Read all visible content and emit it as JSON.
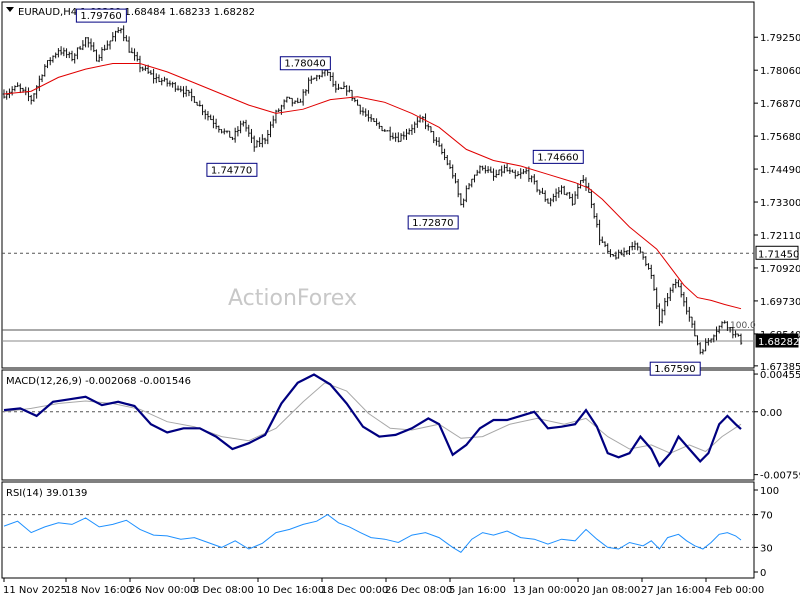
{
  "header": {
    "symbol": "EURAUD,H4",
    "ohlc": "1.68289 1.68484 1.68233 1.68282"
  },
  "watermark": "ActionForex",
  "colors": {
    "price_bars": "#111111",
    "moving_average": "#e00000",
    "macd_line": "#000080",
    "macd_signal": "#a8a8a8",
    "rsi_line": "#1e90ff",
    "grid_dash": "#555555",
    "label_border": "#000080"
  },
  "chart_data": [
    {
      "type": "ohlc",
      "panel": "price",
      "title": "EURAUD,H4",
      "ylim": [
        1.6738,
        1.8045
      ],
      "y_ticks": [
        "1.79250",
        "1.78060",
        "1.76870",
        "1.75680",
        "1.74490",
        "1.73300",
        "1.72110",
        "1.70920",
        "1.69730",
        "1.68540",
        "1.67385"
      ],
      "x_ticks": [
        "11 Nov 2025",
        "18 Nov 16:00",
        "26 Nov 00:00",
        "3 Dec 08:00",
        "10 Dec 16:00",
        "18 Dec 00:00",
        "26 Dec 08:00",
        "5 Jan 16:00",
        "13 Jan 00:00",
        "20 Jan 08:00",
        "27 Jan 16:00",
        "4 Feb 00:00"
      ],
      "close_path": [
        [
          0,
          1.772
        ],
        [
          5,
          1.7745
        ],
        [
          10,
          1.77
        ],
        [
          15,
          1.782
        ],
        [
          20,
          1.788
        ],
        [
          25,
          1.785
        ],
        [
          30,
          1.792
        ],
        [
          34,
          1.785
        ],
        [
          38,
          1.79
        ],
        [
          43,
          1.796
        ],
        [
          46,
          1.788
        ],
        [
          50,
          1.782
        ],
        [
          55,
          1.778
        ],
        [
          60,
          1.776
        ],
        [
          65,
          1.774
        ],
        [
          70,
          1.77
        ],
        [
          75,
          1.764
        ],
        [
          80,
          1.759
        ],
        [
          84,
          1.756
        ],
        [
          88,
          1.762
        ],
        [
          92,
          1.753
        ],
        [
          96,
          1.756
        ],
        [
          100,
          1.765
        ],
        [
          104,
          1.77
        ],
        [
          108,
          1.768
        ],
        [
          112,
          1.776
        ],
        [
          116,
          1.779
        ],
        [
          119,
          1.78
        ],
        [
          122,
          1.773
        ],
        [
          126,
          1.774
        ],
        [
          130,
          1.768
        ],
        [
          135,
          1.762
        ],
        [
          140,
          1.759
        ],
        [
          145,
          1.756
        ],
        [
          150,
          1.76
        ],
        [
          154,
          1.763
        ],
        [
          158,
          1.756
        ],
        [
          162,
          1.749
        ],
        [
          165,
          1.743
        ],
        [
          168,
          1.732
        ],
        [
          172,
          1.742
        ],
        [
          176,
          1.746
        ],
        [
          180,
          1.742
        ],
        [
          184,
          1.745
        ],
        [
          188,
          1.742
        ],
        [
          192,
          1.744
        ],
        [
          196,
          1.738
        ],
        [
          200,
          1.733
        ],
        [
          205,
          1.738
        ],
        [
          209,
          1.733
        ],
        [
          213,
          1.742
        ],
        [
          216,
          1.733
        ],
        [
          219,
          1.72
        ],
        [
          223,
          1.713
        ],
        [
          227,
          1.714
        ],
        [
          231,
          1.718
        ],
        [
          235,
          1.714
        ],
        [
          238,
          1.706
        ],
        [
          241,
          1.69
        ],
        [
          244,
          1.699
        ],
        [
          247,
          1.704
        ],
        [
          250,
          1.698
        ],
        [
          253,
          1.688
        ],
        [
          256,
          1.679
        ],
        [
          259,
          1.683
        ],
        [
          262,
          1.687
        ],
        [
          265,
          1.69
        ],
        [
          268,
          1.686
        ],
        [
          271,
          1.6828
        ]
      ],
      "moving_average": [
        [
          0,
          1.772
        ],
        [
          10,
          1.773
        ],
        [
          20,
          1.778
        ],
        [
          30,
          1.781
        ],
        [
          40,
          1.783
        ],
        [
          50,
          1.783
        ],
        [
          60,
          1.78
        ],
        [
          70,
          1.776
        ],
        [
          80,
          1.772
        ],
        [
          90,
          1.768
        ],
        [
          100,
          1.765
        ],
        [
          110,
          1.7665
        ],
        [
          120,
          1.77
        ],
        [
          130,
          1.771
        ],
        [
          140,
          1.769
        ],
        [
          150,
          1.765
        ],
        [
          160,
          1.76
        ],
        [
          170,
          1.752
        ],
        [
          180,
          1.748
        ],
        [
          190,
          1.746
        ],
        [
          200,
          1.743
        ],
        [
          210,
          1.74
        ],
        [
          215,
          1.738
        ],
        [
          220,
          1.734
        ],
        [
          230,
          1.724
        ],
        [
          240,
          1.716
        ],
        [
          250,
          1.703
        ],
        [
          255,
          1.6985
        ],
        [
          260,
          1.6975
        ],
        [
          265,
          1.696
        ],
        [
          271,
          1.6945
        ]
      ],
      "annotations": [
        {
          "label": "1.79760",
          "x": 45,
          "value": 1.7976
        },
        {
          "label": "1.78040",
          "x": 120,
          "value": 1.7804
        },
        {
          "label": "1.74770",
          "x": 93,
          "value": 1.7477
        },
        {
          "label": "1.72870",
          "x": 167,
          "value": 1.7287
        },
        {
          "label": "1.74660",
          "x": 213,
          "value": 1.7466
        },
        {
          "label": "1.67590",
          "x": 256,
          "value": 1.6759
        }
      ],
      "reference_lines": [
        {
          "label": "1.71450",
          "value": 1.7145,
          "style": "dashed"
        },
        {
          "label": "1.68282",
          "value": 1.68282,
          "style": "solid"
        },
        {
          "label": "100.0",
          "value": 1.6868,
          "style": "solid"
        }
      ]
    },
    {
      "type": "line",
      "panel": "macd",
      "title": "MACD(12,26,9) -0.002068 -0.001546",
      "ylim": [
        -0.008,
        0.0048
      ],
      "y_ticks": [
        "0.004553",
        "0.00",
        "-0.007593"
      ],
      "series": [
        {
          "role": "macd",
          "values": [
            [
              0,
              0.0002
            ],
            [
              6,
              0.0004
            ],
            [
              12,
              -0.0005
            ],
            [
              18,
              0.0012
            ],
            [
              24,
              0.0015
            ],
            [
              30,
              0.0018
            ],
            [
              36,
              0.0008
            ],
            [
              42,
              0.0012
            ],
            [
              48,
              0.0007
            ],
            [
              54,
              -0.0015
            ],
            [
              60,
              -0.0025
            ],
            [
              66,
              -0.002
            ],
            [
              72,
              -0.002
            ],
            [
              78,
              -0.003
            ],
            [
              84,
              -0.0045
            ],
            [
              90,
              -0.0038
            ],
            [
              96,
              -0.0028
            ],
            [
              102,
              0.001
            ],
            [
              108,
              0.0035
            ],
            [
              114,
              0.0045
            ],
            [
              120,
              0.0033
            ],
            [
              126,
              0.001
            ],
            [
              132,
              -0.0018
            ],
            [
              138,
              -0.003
            ],
            [
              144,
              -0.0028
            ],
            [
              150,
              -0.002
            ],
            [
              156,
              -0.0008
            ],
            [
              160,
              -0.0015
            ],
            [
              165,
              -0.0052
            ],
            [
              170,
              -0.004
            ],
            [
              175,
              -0.002
            ],
            [
              180,
              -0.001
            ],
            [
              185,
              -0.001
            ],
            [
              190,
              -0.0005
            ],
            [
              195,
              0.0
            ],
            [
              200,
              -0.002
            ],
            [
              205,
              -0.0018
            ],
            [
              210,
              -0.0015
            ],
            [
              214,
              0.0002
            ],
            [
              218,
              -0.0018
            ],
            [
              222,
              -0.005
            ],
            [
              226,
              -0.0055
            ],
            [
              230,
              -0.005
            ],
            [
              234,
              -0.003
            ],
            [
              238,
              -0.0045
            ],
            [
              241,
              -0.0065
            ],
            [
              245,
              -0.005
            ],
            [
              248,
              -0.003
            ],
            [
              252,
              -0.0045
            ],
            [
              256,
              -0.006
            ],
            [
              259,
              -0.005
            ],
            [
              263,
              -0.0015
            ],
            [
              266,
              -0.0005
            ],
            [
              269,
              -0.0015
            ],
            [
              271,
              -0.0021
            ]
          ]
        },
        {
          "role": "signal",
          "values": [
            [
              0,
              0.0
            ],
            [
              10,
              0.0004
            ],
            [
              20,
              0.001
            ],
            [
              30,
              0.0013
            ],
            [
              40,
              0.001
            ],
            [
              50,
              0.0003
            ],
            [
              60,
              -0.0012
            ],
            [
              70,
              -0.0018
            ],
            [
              80,
              -0.003
            ],
            [
              90,
              -0.0035
            ],
            [
              100,
              -0.002
            ],
            [
              110,
              0.0012
            ],
            [
              118,
              0.0035
            ],
            [
              126,
              0.0025
            ],
            [
              134,
              -0.0002
            ],
            [
              142,
              -0.002
            ],
            [
              150,
              -0.0022
            ],
            [
              160,
              -0.0015
            ],
            [
              168,
              -0.0032
            ],
            [
              176,
              -0.003
            ],
            [
              186,
              -0.0015
            ],
            [
              196,
              -0.0008
            ],
            [
              206,
              -0.0015
            ],
            [
              214,
              -0.0008
            ],
            [
              222,
              -0.003
            ],
            [
              230,
              -0.0045
            ],
            [
              238,
              -0.004
            ],
            [
              245,
              -0.005
            ],
            [
              252,
              -0.004
            ],
            [
              258,
              -0.0048
            ],
            [
              264,
              -0.003
            ],
            [
              271,
              -0.0015
            ]
          ]
        }
      ]
    },
    {
      "type": "line",
      "panel": "rsi",
      "title": "RSI(14) 39.0139",
      "ylim": [
        0,
        100
      ],
      "y_ticks": [
        "100",
        "70",
        "30",
        "0"
      ],
      "series": [
        {
          "role": "rsi",
          "values": [
            [
              0,
              56
            ],
            [
              5,
              62
            ],
            [
              10,
              48
            ],
            [
              15,
              55
            ],
            [
              20,
              60
            ],
            [
              25,
              58
            ],
            [
              30,
              66
            ],
            [
              35,
              55
            ],
            [
              40,
              58
            ],
            [
              45,
              63
            ],
            [
              50,
              52
            ],
            [
              55,
              45
            ],
            [
              60,
              44
            ],
            [
              65,
              40
            ],
            [
              70,
              42
            ],
            [
              75,
              36
            ],
            [
              80,
              30
            ],
            [
              85,
              38
            ],
            [
              90,
              28
            ],
            [
              95,
              35
            ],
            [
              100,
              48
            ],
            [
              105,
              52
            ],
            [
              110,
              58
            ],
            [
              115,
              62
            ],
            [
              119,
              70
            ],
            [
              123,
              60
            ],
            [
              127,
              55
            ],
            [
              131,
              48
            ],
            [
              135,
              42
            ],
            [
              140,
              40
            ],
            [
              145,
              36
            ],
            [
              150,
              45
            ],
            [
              155,
              48
            ],
            [
              160,
              42
            ],
            [
              165,
              30
            ],
            [
              168,
              24
            ],
            [
              172,
              40
            ],
            [
              176,
              48
            ],
            [
              180,
              45
            ],
            [
              185,
              50
            ],
            [
              190,
              42
            ],
            [
              195,
              40
            ],
            [
              200,
              34
            ],
            [
              205,
              40
            ],
            [
              210,
              38
            ],
            [
              214,
              52
            ],
            [
              218,
              40
            ],
            [
              222,
              30
            ],
            [
              226,
              28
            ],
            [
              230,
              36
            ],
            [
              235,
              32
            ],
            [
              238,
              38
            ],
            [
              241,
              28
            ],
            [
              244,
              42
            ],
            [
              248,
              46
            ],
            [
              251,
              38
            ],
            [
              254,
              32
            ],
            [
              257,
              28
            ],
            [
              260,
              36
            ],
            [
              263,
              46
            ],
            [
              266,
              48
            ],
            [
              269,
              44
            ],
            [
              271,
              39
            ]
          ]
        }
      ],
      "levels": [
        70,
        30
      ]
    }
  ]
}
